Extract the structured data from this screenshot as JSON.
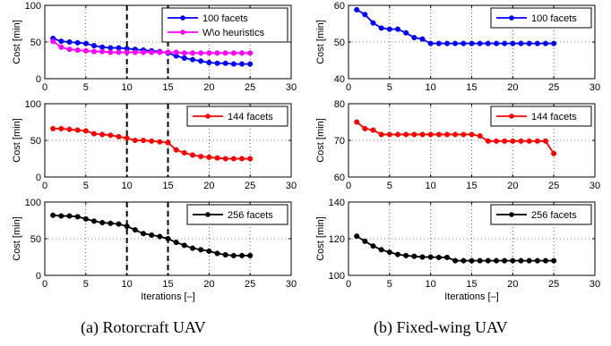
{
  "captions": [
    "(a) Rotorcraft UAV",
    "(b) Fixed-wing UAV"
  ],
  "chart_data": [
    {
      "type": "line",
      "column": "a",
      "row": 0,
      "xlabel": "",
      "ylabel": "Cost [min]",
      "xlim": [
        0,
        30
      ],
      "ylim": [
        0,
        100
      ],
      "xticks": [
        0,
        5,
        10,
        15,
        20,
        25,
        30
      ],
      "yticks": [
        0,
        50,
        100
      ],
      "grid": true,
      "legend": "top-right",
      "vlines": [
        10,
        15
      ],
      "series": [
        {
          "name": "100 facets",
          "color": "#0000ff",
          "x": [
            1,
            2,
            3,
            4,
            5,
            6,
            7,
            8,
            9,
            10,
            11,
            12,
            13,
            14,
            15,
            16,
            17,
            18,
            19,
            20,
            21,
            22,
            23,
            24,
            25
          ],
          "y": [
            55,
            51,
            50,
            49,
            48,
            45,
            43,
            42,
            42,
            41,
            40,
            39,
            38,
            37,
            35,
            31,
            28,
            26,
            24,
            22,
            21,
            21,
            20,
            20,
            20
          ]
        },
        {
          "name": "W\\o heuristics",
          "color": "#ff00ff",
          "x": [
            1,
            2,
            3,
            4,
            5,
            6,
            7,
            8,
            9,
            10,
            11,
            12,
            13,
            14,
            15,
            16,
            17,
            18,
            19,
            20,
            21,
            22,
            23,
            24,
            25
          ],
          "y": [
            51,
            43,
            40,
            39,
            38,
            37,
            37,
            36,
            36,
            36,
            36,
            36,
            36,
            36,
            36,
            36,
            35,
            35,
            35,
            35,
            35,
            35,
            35,
            35,
            35
          ]
        }
      ]
    },
    {
      "type": "line",
      "column": "a",
      "row": 1,
      "xlabel": "",
      "ylabel": "Cost [min]",
      "xlim": [
        0,
        30
      ],
      "ylim": [
        0,
        100
      ],
      "xticks": [
        0,
        5,
        10,
        15,
        20,
        25,
        30
      ],
      "yticks": [
        0,
        50,
        100
      ],
      "grid": true,
      "legend": "top-right",
      "vlines": [
        10,
        15
      ],
      "series": [
        {
          "name": "144 facets",
          "color": "#ff0000",
          "x": [
            1,
            2,
            3,
            4,
            5,
            6,
            7,
            8,
            9,
            10,
            11,
            12,
            13,
            14,
            15,
            16,
            17,
            18,
            19,
            20,
            21,
            22,
            23,
            24,
            25
          ],
          "y": [
            66,
            66,
            65,
            64,
            63,
            59,
            58,
            57,
            55,
            53,
            50,
            50,
            49,
            48,
            47,
            37,
            33,
            30,
            28,
            27,
            26,
            25,
            25,
            25,
            25
          ]
        }
      ]
    },
    {
      "type": "line",
      "column": "a",
      "row": 2,
      "xlabel": "Iterations [–]",
      "ylabel": "Cost [min]",
      "xlim": [
        0,
        30
      ],
      "ylim": [
        0,
        100
      ],
      "xticks": [
        0,
        5,
        10,
        15,
        20,
        25,
        30
      ],
      "yticks": [
        0,
        50,
        100
      ],
      "grid": true,
      "legend": "top-right",
      "vlines": [
        10,
        15
      ],
      "series": [
        {
          "name": "256 facets",
          "color": "#000000",
          "x": [
            1,
            2,
            3,
            4,
            5,
            6,
            7,
            8,
            9,
            10,
            11,
            12,
            13,
            14,
            15,
            16,
            17,
            18,
            19,
            20,
            21,
            22,
            23,
            24,
            25
          ],
          "y": [
            82,
            81,
            81,
            80,
            77,
            74,
            72,
            71,
            70,
            67,
            62,
            57,
            55,
            53,
            50,
            45,
            41,
            37,
            35,
            33,
            30,
            28,
            27,
            27,
            27
          ]
        }
      ]
    },
    {
      "type": "line",
      "column": "b",
      "row": 0,
      "xlabel": "",
      "ylabel": "Cost [min]",
      "xlim": [
        0,
        30
      ],
      "ylim": [
        40,
        60
      ],
      "xticks": [
        0,
        5,
        10,
        15,
        20,
        25,
        30
      ],
      "yticks": [
        40,
        50,
        60
      ],
      "grid": true,
      "legend": "top-right",
      "vlines": [],
      "series": [
        {
          "name": "100 facets",
          "color": "#0000ff",
          "x": [
            1,
            2,
            3,
            4,
            5,
            6,
            7,
            8,
            9,
            10,
            11,
            12,
            13,
            14,
            15,
            16,
            17,
            18,
            19,
            20,
            21,
            22,
            23,
            24,
            25
          ],
          "y": [
            58.8,
            57.5,
            55.2,
            53.8,
            53.5,
            53.5,
            52.5,
            51.2,
            50.8,
            49.6,
            49.6,
            49.6,
            49.6,
            49.6,
            49.6,
            49.6,
            49.6,
            49.6,
            49.6,
            49.6,
            49.6,
            49.6,
            49.6,
            49.6,
            49.6
          ]
        }
      ]
    },
    {
      "type": "line",
      "column": "b",
      "row": 1,
      "xlabel": "",
      "ylabel": "Cost [min]",
      "xlim": [
        0,
        30
      ],
      "ylim": [
        60,
        80
      ],
      "xticks": [
        0,
        5,
        10,
        15,
        20,
        25,
        30
      ],
      "yticks": [
        60,
        70,
        80
      ],
      "grid": true,
      "legend": "top-right",
      "vlines": [],
      "series": [
        {
          "name": "144 facets",
          "color": "#ff0000",
          "x": [
            1,
            2,
            3,
            4,
            5,
            6,
            7,
            8,
            9,
            10,
            11,
            12,
            13,
            14,
            15,
            16,
            17,
            18,
            19,
            20,
            21,
            22,
            23,
            24,
            25
          ],
          "y": [
            75,
            73.2,
            72.8,
            71.6,
            71.6,
            71.6,
            71.6,
            71.6,
            71.6,
            71.6,
            71.6,
            71.6,
            71.6,
            71.6,
            71.6,
            71.2,
            69.8,
            69.8,
            69.8,
            69.8,
            69.8,
            69.8,
            69.8,
            69.8,
            66.4
          ]
        }
      ]
    },
    {
      "type": "line",
      "column": "b",
      "row": 2,
      "xlabel": "Iterations [–]",
      "ylabel": "Cost [min]",
      "xlim": [
        0,
        30
      ],
      "ylim": [
        100,
        140
      ],
      "xticks": [
        0,
        5,
        10,
        15,
        20,
        25,
        30
      ],
      "yticks": [
        100,
        120,
        140
      ],
      "grid": true,
      "legend": "top-right",
      "vlines": [],
      "series": [
        {
          "name": "256 facets",
          "color": "#000000",
          "x": [
            1,
            2,
            3,
            4,
            5,
            6,
            7,
            8,
            9,
            10,
            11,
            12,
            13,
            14,
            15,
            16,
            17,
            18,
            19,
            20,
            21,
            22,
            23,
            24,
            25
          ],
          "y": [
            121.4,
            118.6,
            116,
            114,
            112.6,
            111.4,
            110.8,
            110.4,
            110,
            110,
            109.8,
            109.8,
            108,
            108,
            108,
            108,
            108,
            108,
            108,
            108,
            108,
            108,
            108,
            108,
            108
          ]
        }
      ]
    }
  ]
}
